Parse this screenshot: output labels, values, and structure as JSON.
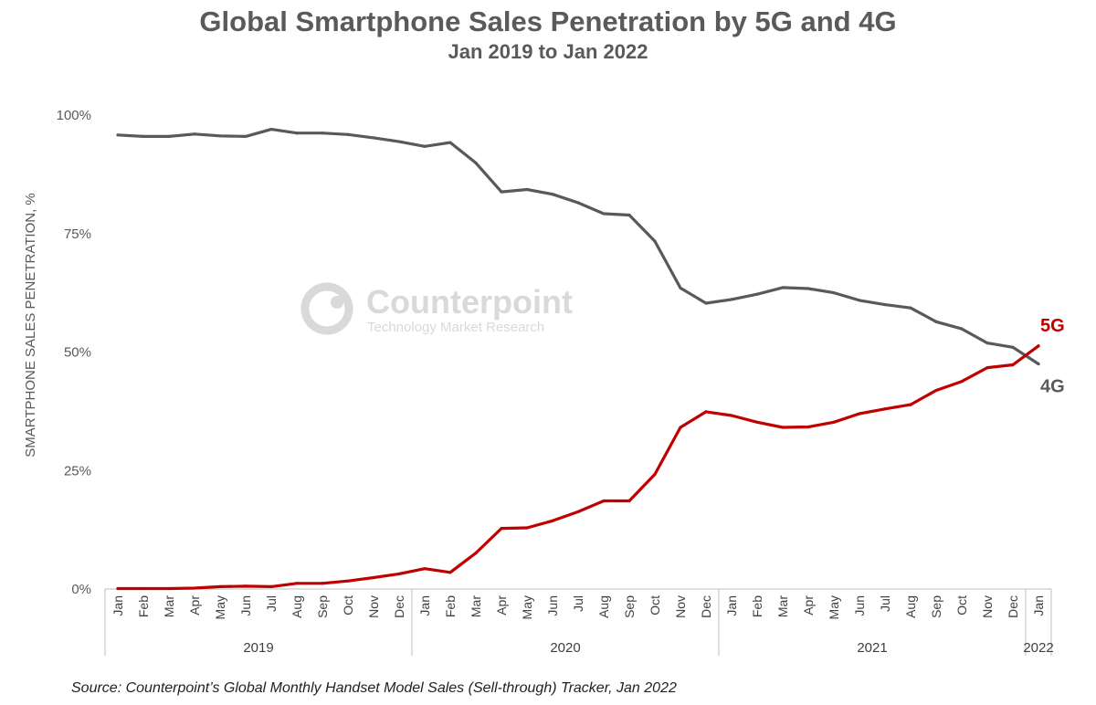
{
  "colors": {
    "series_5g": "#c00000",
    "series_4g": "#595959",
    "axis_text": "#595959",
    "watermark": "#d9d9d9"
  },
  "watermark": {
    "name": "Counterpoint",
    "tagline": "Technology Market Research"
  },
  "source": "Source: Counterpoint’s Global Monthly Handset Model Sales (Sell-through) Tracker, Jan 2022",
  "chart_data": {
    "type": "line",
    "title": "Global Smartphone Sales Penetration by 5G and 4G",
    "subtitle": "Jan 2019 to Jan 2022",
    "ylabel": "SMARTPHONE SALES PENETRATION, %",
    "xlabel": "",
    "ylim": [
      0,
      100
    ],
    "yticks": [
      0,
      25,
      50,
      75,
      100
    ],
    "ytick_labels": [
      "0%",
      "25%",
      "50%",
      "75%",
      "100%"
    ],
    "grid": false,
    "categories": [
      "Jan",
      "Feb",
      "Mar",
      "Apr",
      "May",
      "Jun",
      "Jul",
      "Aug",
      "Sep",
      "Oct",
      "Nov",
      "Dec",
      "Jan",
      "Feb",
      "Mar",
      "Apr",
      "May",
      "Jun",
      "Jul",
      "Aug",
      "Sep",
      "Oct",
      "Nov",
      "Dec",
      "Jan",
      "Feb",
      "Mar",
      "Apr",
      "May",
      "Jun",
      "Jul",
      "Aug",
      "Sep",
      "Oct",
      "Nov",
      "Dec",
      "Jan"
    ],
    "year_groups": [
      {
        "label": "2019",
        "start": 0,
        "end": 11
      },
      {
        "label": "2020",
        "start": 12,
        "end": 23
      },
      {
        "label": "2021",
        "start": 24,
        "end": 35
      },
      {
        "label": "2022",
        "start": 36,
        "end": 36
      }
    ],
    "series": [
      {
        "name": "4G",
        "label": "4G",
        "values": [
          95.8,
          95.5,
          95.5,
          96.0,
          95.6,
          95.5,
          97.0,
          96.2,
          96.2,
          95.9,
          95.2,
          94.4,
          93.4,
          94.2,
          89.9,
          83.8,
          84.3,
          83.3,
          81.5,
          79.2,
          78.9,
          73.4,
          63.5,
          60.3,
          61.1,
          62.2,
          63.6,
          63.4,
          62.5,
          60.9,
          60.0,
          59.3,
          56.4,
          54.9,
          51.9,
          51.0,
          47.5
        ]
      },
      {
        "name": "5G",
        "label": "5G",
        "values": [
          0.1,
          0.1,
          0.1,
          0.2,
          0.5,
          0.6,
          0.5,
          1.2,
          1.2,
          1.7,
          2.4,
          3.2,
          4.3,
          3.5,
          7.6,
          12.8,
          12.9,
          14.4,
          16.3,
          18.6,
          18.6,
          24.2,
          34.1,
          37.4,
          36.6,
          35.2,
          34.1,
          34.2,
          35.2,
          37.0,
          38.0,
          38.9,
          41.9,
          43.8,
          46.7,
          47.3,
          51.3
        ]
      }
    ]
  }
}
